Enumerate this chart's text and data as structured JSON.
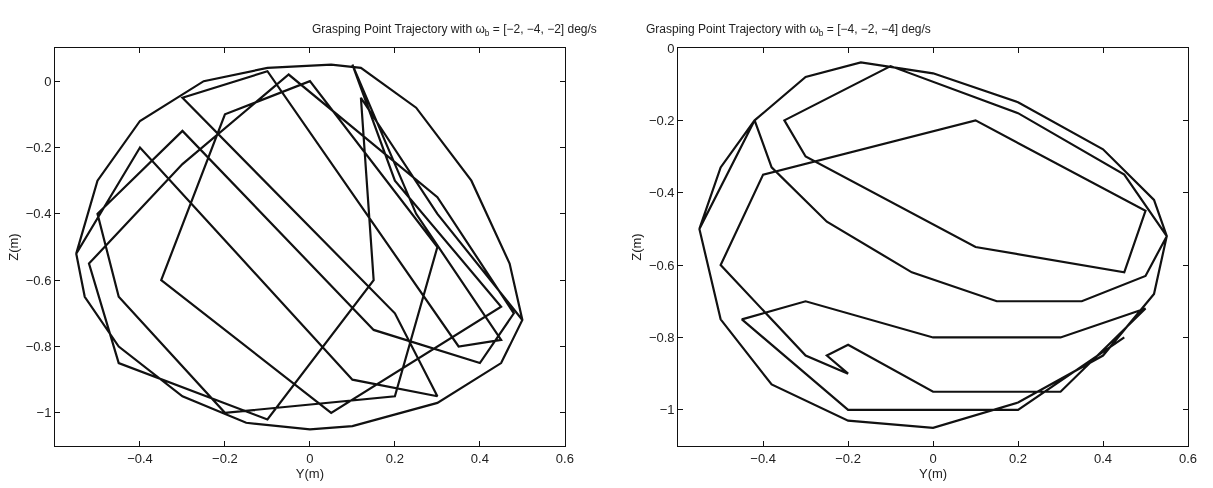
{
  "chart_data": [
    {
      "type": "line",
      "title": "Grasping Point Trajectory with ω$_{b}$ = [−2, −4, −2] deg/s",
      "xlabel": "Y(m)",
      "ylabel": "Z(m)",
      "xlim": [
        -0.6,
        0.6
      ],
      "ylim": [
        -1.1,
        0.1
      ],
      "xticks": [
        -0.4,
        -0.2,
        0,
        0.2,
        0.4,
        0.6
      ],
      "yticks": [
        -1,
        -0.8,
        -0.6,
        -0.4,
        -0.2,
        0
      ],
      "line_style": "solid",
      "series": [
        {
          "color": "#111111",
          "x": [
            -0.55,
            -0.5,
            -0.4,
            -0.25,
            -0.1,
            0.05,
            0.12,
            0.25,
            0.38,
            0.47,
            0.5,
            0.45,
            0.3,
            0.1,
            0.0,
            -0.15,
            -0.3,
            -0.45,
            -0.53,
            -0.55,
            -0.4,
            0.1,
            0.3,
            0.2,
            -0.3,
            -0.1,
            0.35,
            0.45,
            0.25,
            0.1,
            0.2,
            0.45,
            0.05,
            -0.35,
            -0.2,
            0.0,
            0.3,
            0.2,
            -0.2,
            -0.45,
            -0.5,
            -0.3,
            0.15,
            0.4,
            0.48,
            0.3,
            -0.05,
            -0.3,
            -0.52,
            -0.45,
            -0.1,
            0.15,
            0.12,
            0.3,
            0.5
          ],
          "values": [
            -0.52,
            -0.3,
            -0.12,
            0.0,
            0.04,
            0.05,
            0.04,
            -0.08,
            -0.3,
            -0.55,
            -0.72,
            -0.85,
            -0.97,
            -1.04,
            -1.05,
            -1.03,
            -0.95,
            -0.8,
            -0.65,
            -0.52,
            -0.2,
            -0.9,
            -0.95,
            -0.7,
            -0.05,
            0.03,
            -0.8,
            -0.78,
            -0.4,
            0.05,
            -0.3,
            -0.68,
            -1.0,
            -0.6,
            -0.1,
            0.0,
            -0.5,
            -0.95,
            -1.0,
            -0.65,
            -0.4,
            -0.15,
            -0.75,
            -0.85,
            -0.7,
            -0.35,
            0.02,
            -0.25,
            -0.55,
            -0.85,
            -1.02,
            -0.6,
            -0.05,
            -0.4,
            -0.72
          ]
        }
      ]
    },
    {
      "type": "line",
      "title": "Grasping Point Trajectory with ω$_{b}$ = [−4, −2, −4] deg/s",
      "xlabel": "Y(m)",
      "ylabel": "Z(m)",
      "xlim": [
        -0.6,
        0.6
      ],
      "ylim": [
        -1.1,
        0
      ],
      "xticks": [
        -0.4,
        -0.2,
        0,
        0.2,
        0.4,
        0.6
      ],
      "yticks": [
        -1,
        -0.8,
        -0.6,
        -0.4,
        -0.2,
        0
      ],
      "line_style": "solid",
      "series": [
        {
          "color": "#111111",
          "x": [
            -0.55,
            -0.5,
            -0.42,
            -0.3,
            -0.17,
            0.0,
            0.2,
            0.4,
            0.52,
            0.55,
            0.52,
            0.4,
            0.2,
            0.0,
            -0.2,
            -0.38,
            -0.5,
            -0.55,
            -0.42,
            -0.38,
            -0.25,
            -0.05,
            0.15,
            0.35,
            0.5,
            0.55,
            0.45,
            0.2,
            -0.1,
            -0.35,
            -0.3,
            0.1,
            0.45,
            0.5,
            0.1,
            -0.4,
            -0.5,
            -0.3,
            -0.2,
            -0.25,
            -0.2,
            0.0,
            0.3,
            0.5,
            0.3,
            0.0,
            -0.3,
            -0.45,
            -0.2,
            0.2,
            0.45
          ],
          "values": [
            -0.5,
            -0.33,
            -0.2,
            -0.08,
            -0.04,
            -0.07,
            -0.15,
            -0.28,
            -0.42,
            -0.52,
            -0.68,
            -0.85,
            -0.98,
            -1.05,
            -1.03,
            -0.93,
            -0.75,
            -0.5,
            -0.2,
            -0.33,
            -0.48,
            -0.62,
            -0.7,
            -0.7,
            -0.63,
            -0.52,
            -0.35,
            -0.18,
            -0.05,
            -0.2,
            -0.3,
            -0.55,
            -0.62,
            -0.45,
            -0.2,
            -0.35,
            -0.6,
            -0.85,
            -0.9,
            -0.85,
            -0.82,
            -0.95,
            -0.95,
            -0.72,
            -0.8,
            -0.8,
            -0.7,
            -0.75,
            -1.0,
            -1.0,
            -0.8
          ]
        }
      ]
    }
  ]
}
